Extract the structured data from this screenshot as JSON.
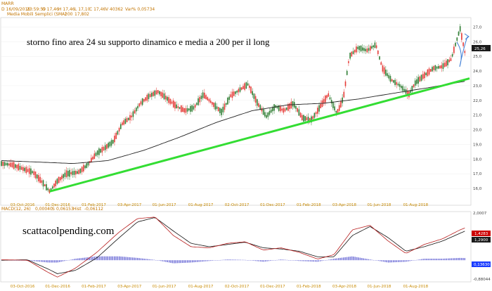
{
  "header": {
    "symbol": "MARR",
    "line1": {
      "date": "D 16/09/2016",
      "time": "23:59:59",
      "open": "O 17,46",
      "high": "H 17,46",
      "low": "L 17,10",
      "close": "C 17,46",
      "volume": "V 40362",
      "var_pct": "Var% 0,05734"
    },
    "line2": {
      "indicator": "Media Mobili Semplici (SMA)",
      "period": "200",
      "value": "17,802"
    },
    "macd": {
      "name": "MACD",
      "params": "(12, 26)",
      "macd_value": "0,00040",
      "signal_label": "S",
      "signal_value": "0,06153",
      "hist_label": "Hist",
      "hist_value": "-0,06112"
    }
  },
  "annotation": "storno fino area 24 su supporto dinamico e media a 200 per il long",
  "brand": "scattacolpending.com",
  "colors": {
    "bull_candle": "#2e7d32",
    "bear_candle": "#e53935",
    "sma": "#222222",
    "trendline": "#33dd33",
    "arrow": "#3a7bd5",
    "macd_line": "#b71c1c",
    "signal_line": "#111111",
    "histogram": "#6b6bd6",
    "last_price_tag": "#1a1a1a",
    "macd_tag": "#cc0000",
    "hist_tag": "#1a3cff"
  },
  "chart_data": [
    {
      "type": "candlestick",
      "title": "MARR",
      "ylim": [
        15,
        27.5
      ],
      "y_ticks": [
        "27,0",
        "26,0",
        "25,0",
        "24,0",
        "23,0",
        "22,0",
        "21,0",
        "20,0",
        "19,0",
        "18,0",
        "17,0",
        "16,0"
      ],
      "y_tick_values": [
        27,
        26,
        25,
        24,
        23,
        22,
        21,
        20,
        19,
        18,
        17,
        16
      ],
      "x_ticks": [
        "03-Oct-2016",
        "01-Dec-2016",
        "01-Feb-2017",
        "03-Apr-2017",
        "01-Jun-2017",
        "01-Aug-2017",
        "02-Oct-2017",
        "01-Dec-2017",
        "01-Feb-2018",
        "03-Apr-2018",
        "01-Jun-2018",
        "01-Aug-2018"
      ],
      "last_price": "25,26",
      "price_path": [
        [
          "2016-09-01",
          17.7
        ],
        [
          "2016-09-20",
          17.6
        ],
        [
          "2016-10-10",
          17.3
        ],
        [
          "2016-10-25",
          17.1
        ],
        [
          "2016-11-10",
          16.4
        ],
        [
          "2016-11-22",
          15.8
        ],
        [
          "2016-12-05",
          16.5
        ],
        [
          "2016-12-20",
          17.0
        ],
        [
          "2017-01-10",
          17.1
        ],
        [
          "2017-01-25",
          17.6
        ],
        [
          "2017-02-10",
          18.4
        ],
        [
          "2017-02-25",
          18.8
        ],
        [
          "2017-03-10",
          19.2
        ],
        [
          "2017-03-25",
          20.4
        ],
        [
          "2017-04-10",
          20.9
        ],
        [
          "2017-04-25",
          21.8
        ],
        [
          "2017-05-10",
          22.3
        ],
        [
          "2017-05-25",
          22.6
        ],
        [
          "2017-06-10",
          22.1
        ],
        [
          "2017-06-25",
          21.6
        ],
        [
          "2017-07-10",
          21.3
        ],
        [
          "2017-07-25",
          21.5
        ],
        [
          "2017-08-10",
          22.4
        ],
        [
          "2017-08-25",
          21.8
        ],
        [
          "2017-09-10",
          21.2
        ],
        [
          "2017-09-25",
          22.3
        ],
        [
          "2017-10-10",
          22.7
        ],
        [
          "2017-10-25",
          23.1
        ],
        [
          "2017-11-10",
          21.8
        ],
        [
          "2017-11-25",
          20.9
        ],
        [
          "2017-12-10",
          21.6
        ],
        [
          "2017-12-25",
          21.3
        ],
        [
          "2018-01-10",
          21.8
        ],
        [
          "2018-01-25",
          20.8
        ],
        [
          "2018-02-10",
          20.7
        ],
        [
          "2018-02-25",
          21.6
        ],
        [
          "2018-03-10",
          22.4
        ],
        [
          "2018-03-25",
          21.1
        ],
        [
          "2018-04-05",
          22.2
        ],
        [
          "2018-04-15",
          25.0
        ],
        [
          "2018-04-30",
          25.6
        ],
        [
          "2018-05-15",
          25.4
        ],
        [
          "2018-05-30",
          25.8
        ],
        [
          "2018-06-10",
          24.2
        ],
        [
          "2018-06-25",
          23.4
        ],
        [
          "2018-07-10",
          23.0
        ],
        [
          "2018-07-25",
          22.4
        ],
        [
          "2018-08-05",
          23.2
        ],
        [
          "2018-08-20",
          23.7
        ],
        [
          "2018-09-05",
          24.2
        ],
        [
          "2018-09-20",
          24.3
        ],
        [
          "2018-10-05",
          24.8
        ],
        [
          "2018-10-15",
          26.2
        ],
        [
          "2018-10-20",
          26.9
        ],
        [
          "2018-10-28",
          25.3
        ]
      ],
      "sma200": [
        [
          "2016-09-01",
          17.9
        ],
        [
          "2016-11-01",
          17.8
        ],
        [
          "2017-01-01",
          17.7
        ],
        [
          "2017-03-01",
          17.9
        ],
        [
          "2017-05-01",
          18.6
        ],
        [
          "2017-07-01",
          19.5
        ],
        [
          "2017-09-01",
          20.5
        ],
        [
          "2017-11-01",
          21.3
        ],
        [
          "2018-01-01",
          21.7
        ],
        [
          "2018-03-01",
          21.8
        ],
        [
          "2018-05-01",
          22.1
        ],
        [
          "2018-07-01",
          22.5
        ],
        [
          "2018-09-01",
          22.9
        ],
        [
          "2018-10-28",
          23.3
        ]
      ],
      "support_trendline": [
        [
          "2016-11-22",
          15.8
        ],
        [
          "2018-11-05",
          23.5
        ]
      ]
    },
    {
      "type": "line",
      "title": "MACD (12, 26)",
      "ylim": [
        -0.9,
        2.1
      ],
      "y_ticks": [
        "2,0007",
        "-0,88044"
      ],
      "x_ticks": [
        "03-Oct-2016",
        "01-Dec-2016",
        "01-Feb-2017",
        "03-Apr-2017",
        "01-Jun-2017",
        "01-Aug-2017",
        "02-Oct-2017",
        "01-Dec-2017",
        "01-Feb-2018",
        "03-Apr-2018",
        "01-Jun-2018",
        "01-Aug-2018"
      ],
      "tags": {
        "macd": "1,4283",
        "signal": "1,2900",
        "hist": "0,13630"
      },
      "macd_path": [
        [
          "2016-09-01",
          0.02
        ],
        [
          "2016-10-15",
          0.0
        ],
        [
          "2016-11-20",
          -0.55
        ],
        [
          "2016-12-05",
          -0.75
        ],
        [
          "2017-01-05",
          -0.35
        ],
        [
          "2017-02-10",
          0.35
        ],
        [
          "2017-03-20",
          1.25
        ],
        [
          "2017-04-20",
          1.85
        ],
        [
          "2017-05-20",
          1.92
        ],
        [
          "2017-06-20",
          1.1
        ],
        [
          "2017-07-20",
          0.6
        ],
        [
          "2017-08-20",
          0.55
        ],
        [
          "2017-09-20",
          0.75
        ],
        [
          "2017-10-20",
          0.82
        ],
        [
          "2017-11-20",
          0.45
        ],
        [
          "2017-12-20",
          0.55
        ],
        [
          "2018-01-20",
          0.35
        ],
        [
          "2018-02-20",
          0.05
        ],
        [
          "2018-03-20",
          0.25
        ],
        [
          "2018-04-20",
          1.35
        ],
        [
          "2018-05-20",
          1.55
        ],
        [
          "2018-06-20",
          0.85
        ],
        [
          "2018-07-20",
          0.3
        ],
        [
          "2018-08-20",
          0.7
        ],
        [
          "2018-09-20",
          0.95
        ],
        [
          "2018-10-20",
          1.35
        ],
        [
          "2018-10-28",
          1.43
        ]
      ],
      "signal_path": [
        [
          "2016-09-01",
          0.0
        ],
        [
          "2016-10-15",
          0.02
        ],
        [
          "2016-11-20",
          -0.4
        ],
        [
          "2016-12-05",
          -0.6
        ],
        [
          "2017-01-05",
          -0.45
        ],
        [
          "2017-02-10",
          0.1
        ],
        [
          "2017-03-20",
          1.0
        ],
        [
          "2017-04-20",
          1.7
        ],
        [
          "2017-05-20",
          1.9
        ],
        [
          "2017-06-20",
          1.3
        ],
        [
          "2017-07-20",
          0.75
        ],
        [
          "2017-08-20",
          0.6
        ],
        [
          "2017-09-20",
          0.7
        ],
        [
          "2017-10-20",
          0.8
        ],
        [
          "2017-11-20",
          0.55
        ],
        [
          "2017-12-20",
          0.5
        ],
        [
          "2018-01-20",
          0.4
        ],
        [
          "2018-02-20",
          0.15
        ],
        [
          "2018-03-20",
          0.15
        ],
        [
          "2018-04-20",
          1.1
        ],
        [
          "2018-05-20",
          1.5
        ],
        [
          "2018-06-20",
          1.0
        ],
        [
          "2018-07-20",
          0.4
        ],
        [
          "2018-08-20",
          0.6
        ],
        [
          "2018-09-20",
          0.85
        ],
        [
          "2018-10-20",
          1.2
        ],
        [
          "2018-10-28",
          1.29
        ]
      ]
    }
  ]
}
